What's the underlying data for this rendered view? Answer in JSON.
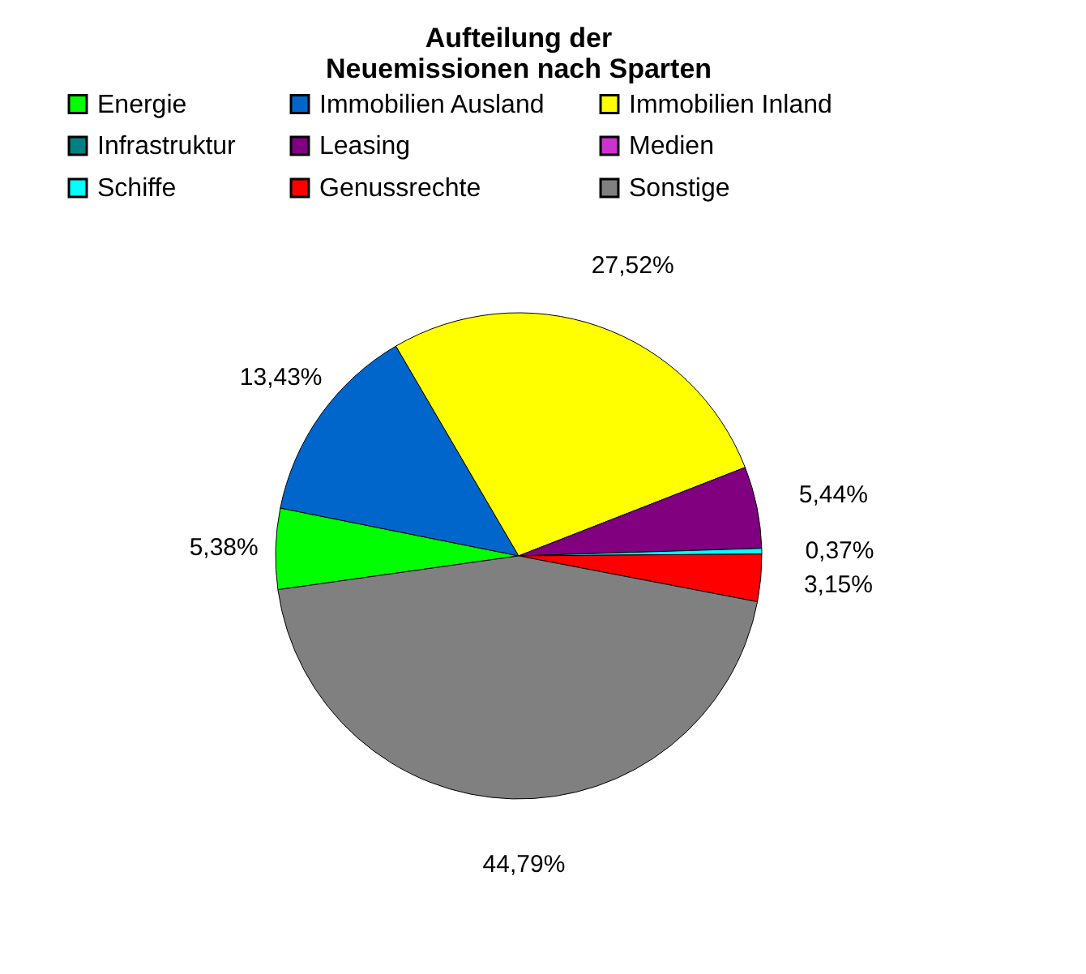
{
  "chart_data": {
    "type": "pie",
    "title": "Aufteilung der\nNeuemissionen nach Sparten",
    "categories": [
      "Energie",
      "Immobilien Ausland",
      "Immobilien Inland",
      "Infrastruktur",
      "Leasing",
      "Medien",
      "Schiffe",
      "Genussrechte",
      "Sonstige"
    ],
    "values": [
      5.38,
      13.43,
      27.52,
      0,
      5.44,
      0,
      0.37,
      3.15,
      44.79
    ],
    "colors": [
      "#00ff00",
      "#0066cc",
      "#ffff00",
      "#008080",
      "#800080",
      "#cc33cc",
      "#00ffff",
      "#ff0000",
      "#808080"
    ],
    "value_labels": [
      "5,38%",
      "13,43%",
      "27,52%",
      null,
      "5,44%",
      null,
      "0,37%",
      "3,15%",
      "44,79%"
    ],
    "legend": "top"
  }
}
